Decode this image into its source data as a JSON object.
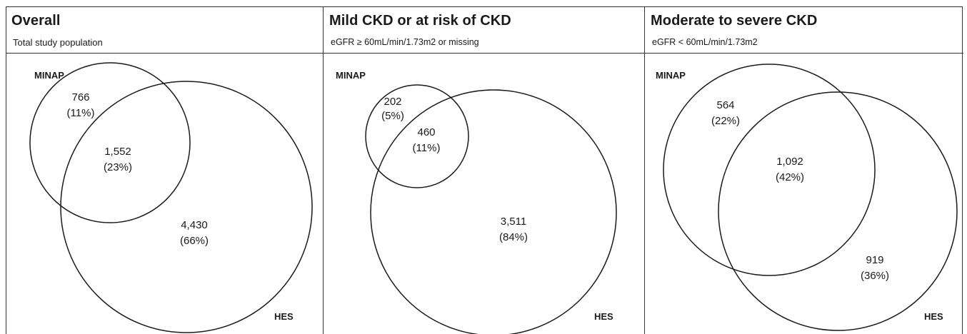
{
  "panels": [
    {
      "title": "Overall",
      "subtitle": "Total study population",
      "set_a_label": "MINAP",
      "set_b_label": "HES",
      "only_a": {
        "count": "766",
        "pct": "(11%)"
      },
      "both": {
        "count": "1,552",
        "pct": "(23%)"
      },
      "only_b": {
        "count": "4,430",
        "pct": "(66%)"
      }
    },
    {
      "title": "Mild CKD or at risk of CKD",
      "subtitle": "eGFR ≥ 60mL/min/1.73m2  or missing",
      "set_a_label": "MINAP",
      "set_b_label": "HES",
      "only_a": {
        "count": "202",
        "pct": "(5%)"
      },
      "both": {
        "count": "460",
        "pct": "(11%)"
      },
      "only_b": {
        "count": "3,511",
        "pct": "(84%)"
      }
    },
    {
      "title": "Moderate to severe CKD",
      "subtitle": "eGFR < 60mL/min/1.73m2",
      "set_a_label": "MINAP",
      "set_b_label": "HES",
      "only_a": {
        "count": "564",
        "pct": "(22%)"
      },
      "both": {
        "count": "1,092",
        "pct": "(42%)"
      },
      "only_b": {
        "count": "919",
        "pct": "(36%)"
      }
    }
  ]
}
